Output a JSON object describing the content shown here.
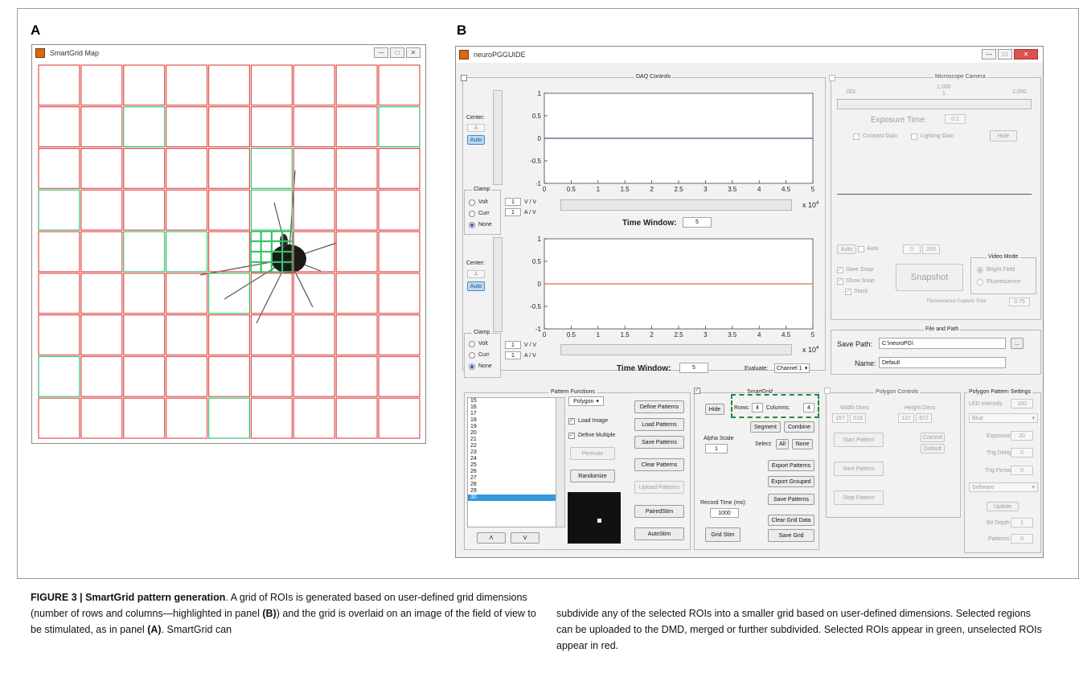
{
  "panel_labels": {
    "a": "A",
    "b": "B"
  },
  "smartgrid_window": {
    "title": "SmartGrid Map",
    "rows": 9,
    "cols": 9,
    "selected_cells": [
      [
        4,
        2
      ],
      [
        4,
        3
      ],
      [
        4,
        5
      ],
      [
        5,
        4
      ],
      [
        3,
        5
      ],
      [
        1,
        8
      ],
      [
        3,
        0
      ],
      [
        7,
        0
      ],
      [
        1,
        2
      ],
      [
        8,
        4
      ],
      [
        2,
        5
      ]
    ],
    "sub_grid_rows": 4,
    "sub_grid_cols": 4,
    "colors": {
      "selected": "#3cbf6a",
      "unselected": "#e05050"
    }
  },
  "main_window": {
    "title": "neuroPGGUIDE",
    "daq": {
      "title": "DAQ Controls",
      "channels": [
        {
          "center_label": "Center:",
          "center_value": "A",
          "auto_label": "Auto",
          "clamp_title": "Clamp",
          "modes": [
            "Volt",
            "Curr",
            "None"
          ],
          "selected_mode": "None",
          "gains": [
            "1",
            "1"
          ],
          "units": [
            "V / V",
            "A / V"
          ],
          "time_window_label": "Time Window:",
          "time_window_value": "5",
          "trace_color": "#4a4f8a",
          "x_multiplier": "x 10",
          "x_exp": "4"
        },
        {
          "center_label": "Center:",
          "center_value": "A",
          "auto_label": "Auto",
          "clamp_title": "Clamp",
          "modes": [
            "Volt",
            "Curr",
            "None"
          ],
          "selected_mode": "None",
          "gains": [
            "1",
            "1"
          ],
          "units": [
            "V / V",
            "A / V"
          ],
          "time_window_label": "Time Window:",
          "time_window_value": "5",
          "trace_color": "#e07050",
          "x_multiplier": "x 10",
          "x_exp": "4"
        }
      ],
      "y_ticks": [
        "1",
        "0.5",
        "0",
        "-0.5",
        "-1"
      ],
      "x_ticks": [
        "0",
        "0.5",
        "1",
        "1.5",
        "2",
        "2.5",
        "3",
        "3.5",
        "4",
        "4.5",
        "5"
      ],
      "evaluate_label": "Evaluate:",
      "evaluate_value": "Channel 1"
    },
    "camera": {
      "title": "Microscope Camera",
      "slider_ticks": [
        ".001",
        "1,000",
        "2,000"
      ],
      "slider_mid_tick": "1",
      "exposure_label": "Exposure Time:",
      "exposure_value": "0.1",
      "contrast_gain": "Contrast Gain",
      "lighting_gain": "Lighting Gain",
      "hide": "Hide",
      "auto_btn": "Auto",
      "auto_check": "Auto",
      "range_min": "0",
      "range_max": "255",
      "save_snap": "Save Snap",
      "show_snap": "Show Snap",
      "stack": "Stack",
      "snapshot": "Snapshot",
      "video_mode_title": "Video Mode",
      "bright_field": "Bright Field",
      "fluorescence": "Fluorescence",
      "fluor_capture_label": "Fluorescence Capture Time",
      "fluor_capture_value": "0.75"
    },
    "file_path": {
      "title": "File and Path",
      "save_path_label": "Save Path:",
      "save_path_value": "C:\\neuroPG\\",
      "browse": "...",
      "name_label": "Name:",
      "name_value": "Default"
    },
    "pattern_functions": {
      "title": "Pattern Functions",
      "list_items": [
        "15",
        "16",
        "17",
        "18",
        "19",
        "20",
        "21",
        "22",
        "23",
        "24",
        "25",
        "26",
        "27",
        "28",
        "29",
        "30"
      ],
      "selected_item": "30",
      "shape_value": "Polygon",
      "load_image": "Load Image",
      "define_multiple": "Define Multiple",
      "permute": "Permute",
      "randomize": "Randomize",
      "define_patterns": "Define Patterns",
      "load_patterns": "Load Patterns",
      "save_patterns": "Save Patterns",
      "clear_patterns": "Clear Patterns",
      "upload_patterns": "Upload Patterns",
      "paired_stim": "PairedStim",
      "auto_stim": "AutoStim",
      "up": "Λ",
      "down": "V"
    },
    "smartgrid": {
      "title": "SmartGrid",
      "hide": "Hide",
      "rows_label": "Rows:",
      "rows_value": "4",
      "columns_label": "Columns:",
      "columns_value": "4",
      "segment": "Segment",
      "combine": "Combine",
      "alpha_label": "Alpha Scale",
      "alpha_value": "1",
      "select_label": "Select:",
      "all": "All",
      "none": "None",
      "export_patterns": "Export Patterns",
      "export_grouped": "Export Grouped",
      "save_patterns": "Save Patterns",
      "record_label": "Record Time (ms):",
      "record_value": "1000",
      "clear_grid": "Clear Grid Data",
      "grid_stim": "Grid Stim",
      "save_grid": "Save Grid",
      "highlight_color": "#1f8a3a"
    },
    "polygon_controls": {
      "title": "Polygon Controls",
      "width_label": "Width Dims",
      "height_label": "Height Dims",
      "width_values": [
        "157",
        "518"
      ],
      "height_values": [
        "137",
        "872"
      ],
      "start": "Start Pattern",
      "next": "Next Pattern",
      "stop": "Stop Pattern",
      "commit": "Commit",
      "default": "Default"
    },
    "polygon_settings": {
      "title": "Polygon Pattern Settings",
      "led_label": "LED Intensity",
      "led_value": "100",
      "color_value": "Blue",
      "exposure_label": "Exposure",
      "exposure_value": "20",
      "trig_delay_label": "Trig Delay",
      "trig_delay_value": "0",
      "trig_period_label": "Trig Period",
      "trig_period_value": "0",
      "trigger_value": "Software",
      "update": "Update",
      "bit_depth_label": "Bit Depth",
      "bit_depth_value": "1",
      "patterns_label": "Patterns",
      "patterns_value": "0"
    }
  },
  "caption": {
    "figure_label": "FIGURE 3 | SmartGrid pattern generation",
    "left": ". A grid of ROIs is generated based on user-defined grid dimensions (number of rows and columns—highlighted in panel ",
    "panel_b_ref": "(B)",
    "left_2": ") and the grid is overlaid on an image of the field of view to be stimulated, as in panel ",
    "panel_a_ref": "(A)",
    "left_3": ". SmartGrid can",
    "right": "subdivide any of the selected ROIs into a smaller grid based on user-defined dimensions. Selected regions can be uploaded to the DMD, merged or further subdivided. Selected ROIs appear in green, unselected ROIs appear in red."
  }
}
